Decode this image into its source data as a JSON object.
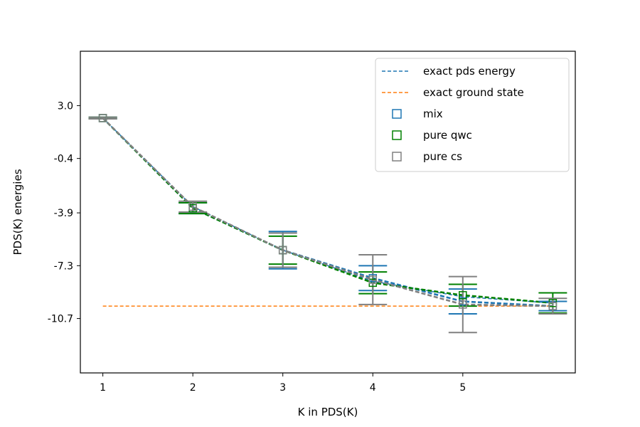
{
  "chart_data": {
    "type": "line",
    "xlabel": "K in PDS(K)",
    "ylabel": "PDS(K) energies",
    "x_ticks": [
      "1",
      "2",
      "3",
      "4",
      "5"
    ],
    "y_ticks": [
      "3.0",
      "-0.4",
      "-3.9",
      "-7.3",
      "-10.7"
    ],
    "y_tick_values": [
      3.0,
      -0.4,
      -3.9,
      -7.3,
      -10.7
    ],
    "xlim": [
      0.75,
      6.25
    ],
    "ylim": [
      -14.2,
      6.5
    ],
    "legend_position": "upper-right",
    "x": [
      1,
      2,
      3,
      4,
      5,
      6
    ],
    "series": [
      {
        "name": "exact pds energy",
        "kind": "line",
        "color": "#1f77b4",
        "dash": "dashed",
        "values": [
          2.2,
          -3.5,
          -6.3,
          -8.3,
          -9.3,
          -9.7
        ]
      },
      {
        "name": "exact ground state",
        "kind": "hline",
        "color": "#ff7f0e",
        "dash": "dashed",
        "value": -9.9
      },
      {
        "name": "mix",
        "kind": "errorbar",
        "color": "#1f77b4",
        "values": [
          2.2,
          -3.6,
          -6.3,
          -8.1,
          -9.6,
          -9.9
        ],
        "err": [
          0.05,
          0.35,
          1.2,
          0.8,
          0.8,
          0.3
        ]
      },
      {
        "name": "pure qwc",
        "kind": "errorbar",
        "color": "#008000",
        "values": [
          2.2,
          -3.6,
          -6.3,
          -8.4,
          -9.2,
          -9.7
        ],
        "err": [
          0.05,
          0.35,
          0.9,
          0.7,
          0.7,
          0.65
        ]
      },
      {
        "name": "pure cs",
        "kind": "errorbar",
        "color": "#808080",
        "values": [
          2.2,
          -3.5,
          -6.3,
          -8.2,
          -9.8,
          -9.9
        ],
        "err": [
          0.05,
          0.35,
          1.1,
          1.6,
          1.8,
          0.5
        ]
      }
    ]
  }
}
